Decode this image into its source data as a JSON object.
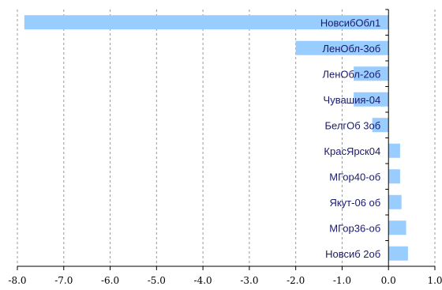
{
  "chart_data": {
    "type": "bar",
    "orientation": "horizontal",
    "categories": [
      "НовсибОбл1",
      "ЛенОбл-3об",
      "ЛенОбл-2об",
      "Чувашия-04",
      "БелгОб 3об",
      "КрасЯрск04",
      "МГор40-об",
      "Якут-06 об",
      "МГор36-об",
      "Новсиб 2об"
    ],
    "values": [
      -7.85,
      -2.0,
      -0.75,
      -0.75,
      -0.35,
      0.25,
      0.25,
      0.28,
      0.38,
      0.42
    ],
    "title": "",
    "xlabel": "",
    "ylabel": "",
    "xlim": [
      -8.0,
      1.0
    ],
    "x_ticks": [
      -8.0,
      -7.0,
      -6.0,
      -5.0,
      -4.0,
      -3.0,
      -2.0,
      -1.0,
      0.0,
      1.0
    ],
    "x_tick_labels": [
      "-8.0",
      "-7.0",
      "-6.0",
      "-5.0",
      "-4.0",
      "-3.0",
      "-2.0",
      "-1.0",
      "0.0",
      "1.0"
    ],
    "grid": "vertical dashed",
    "legend": "none",
    "colors": {
      "bar": "#99ccff",
      "grid": "#999999",
      "axis": "#000000",
      "label": "#1a1a6e"
    }
  }
}
